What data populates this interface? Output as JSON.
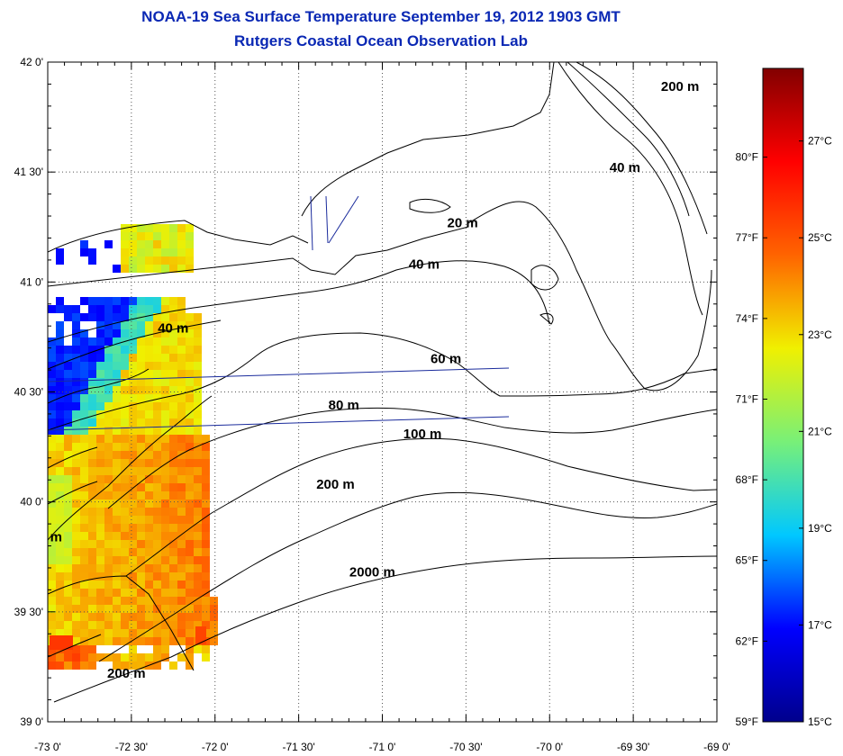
{
  "title": {
    "line1": "NOAA-19 Sea Surface Temperature September 19, 2012 1903 GMT",
    "line2": "Rutgers Coastal Ocean Observation Lab"
  },
  "map": {
    "lon_range": [
      -73.0,
      -69.0
    ],
    "lat_range": [
      39.0,
      42.0
    ],
    "grid": "dotted",
    "lon_ticks": [
      {
        "value": -73.0,
        "label": "-73 0'"
      },
      {
        "value": -72.5,
        "label": "-72 30'"
      },
      {
        "value": -72.0,
        "label": "-72 0'"
      },
      {
        "value": -71.5,
        "label": "-71 30'"
      },
      {
        "value": -71.0,
        "label": "-71 0'"
      },
      {
        "value": -70.5,
        "label": "-70 30'"
      },
      {
        "value": -70.0,
        "label": "-70 0'"
      },
      {
        "value": -69.5,
        "label": "-69 30'"
      },
      {
        "value": -69.0,
        "label": "-69 0'"
      }
    ],
    "lat_ticks": [
      {
        "value": 42.0,
        "label": "42 0'"
      },
      {
        "value": 41.5,
        "label": "41 30'"
      },
      {
        "value": 41.0,
        "label": "41 0'"
      },
      {
        "value": 40.5,
        "label": "40 30'"
      },
      {
        "value": 40.0,
        "label": "40 0'"
      },
      {
        "value": 39.5,
        "label": "39 30'"
      },
      {
        "value": 39.0,
        "label": "39 0'"
      }
    ],
    "contour_labels": [
      {
        "text": "200 m",
        "lon": -69.22,
        "lat": 41.87
      },
      {
        "text": "40 m",
        "lon": -69.55,
        "lat": 41.5
      },
      {
        "text": "20 m",
        "lon": -70.52,
        "lat": 41.25
      },
      {
        "text": "40 m",
        "lon": -70.75,
        "lat": 41.06
      },
      {
        "text": "40 m",
        "lon": -72.25,
        "lat": 40.77
      },
      {
        "text": "60 m",
        "lon": -70.62,
        "lat": 40.63
      },
      {
        "text": "80 m",
        "lon": -71.23,
        "lat": 40.42
      },
      {
        "text": "100 m",
        "lon": -70.76,
        "lat": 40.29
      },
      {
        "text": "200 m",
        "lon": -71.28,
        "lat": 40.06
      },
      {
        "text": "2000 m",
        "lon": -71.06,
        "lat": 39.66
      },
      {
        "text": "200 m",
        "lon": -72.53,
        "lat": 39.2
      },
      {
        "text": "m",
        "lon": -72.95,
        "lat": 39.82
      }
    ]
  },
  "colorbar": {
    "min_c": 15,
    "max_c": 28.5,
    "colors": [
      "#00008c",
      "#0000ff",
      "#00c8ff",
      "#78f078",
      "#f0f000",
      "#ff6400",
      "#ff0000",
      "#820000"
    ],
    "celsius_ticks": [
      {
        "value": 27,
        "label": "27°C"
      },
      {
        "value": 25,
        "label": "25°C"
      },
      {
        "value": 23,
        "label": "23°C"
      },
      {
        "value": 21,
        "label": "21°C"
      },
      {
        "value": 19,
        "label": "19°C"
      },
      {
        "value": 17,
        "label": "17°C"
      },
      {
        "value": 15,
        "label": "15°C"
      }
    ],
    "fahrenheit_ticks": [
      {
        "value": 80,
        "label": "80°F"
      },
      {
        "value": 77,
        "label": "77°F"
      },
      {
        "value": 74,
        "label": "74°F"
      },
      {
        "value": 71,
        "label": "71°F"
      },
      {
        "value": 68,
        "label": "68°F"
      },
      {
        "value": 65,
        "label": "65°F"
      },
      {
        "value": 62,
        "label": "62°F"
      },
      {
        "value": 59,
        "label": "59°F"
      }
    ]
  }
}
